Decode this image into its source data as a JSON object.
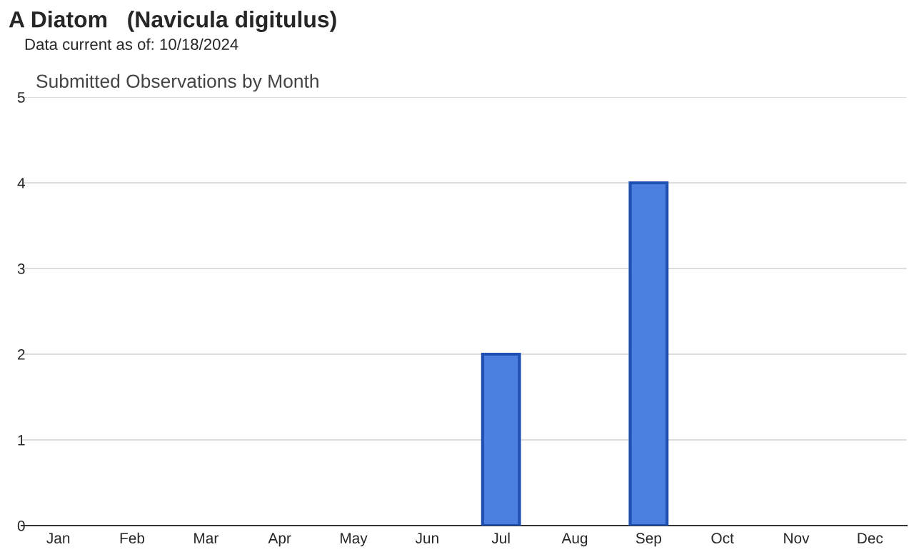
{
  "chart_data": {
    "type": "bar",
    "title": "A Diatom   (Navicula digitulus)",
    "subtitle": "Data current as of: 10/18/2024",
    "annotations": [
      "Submitted Observations by Month"
    ],
    "categories": [
      "Jan",
      "Feb",
      "Mar",
      "Apr",
      "May",
      "Jun",
      "Jul",
      "Aug",
      "Sep",
      "Oct",
      "Nov",
      "Dec"
    ],
    "values": [
      0,
      0,
      0,
      0,
      0,
      0,
      2,
      0,
      4,
      0,
      0,
      0
    ],
    "color": "#4a7fe0",
    "ylim": [
      0,
      5
    ],
    "yticks": [
      0,
      1,
      2,
      3,
      4,
      5
    ],
    "grid": "y"
  }
}
